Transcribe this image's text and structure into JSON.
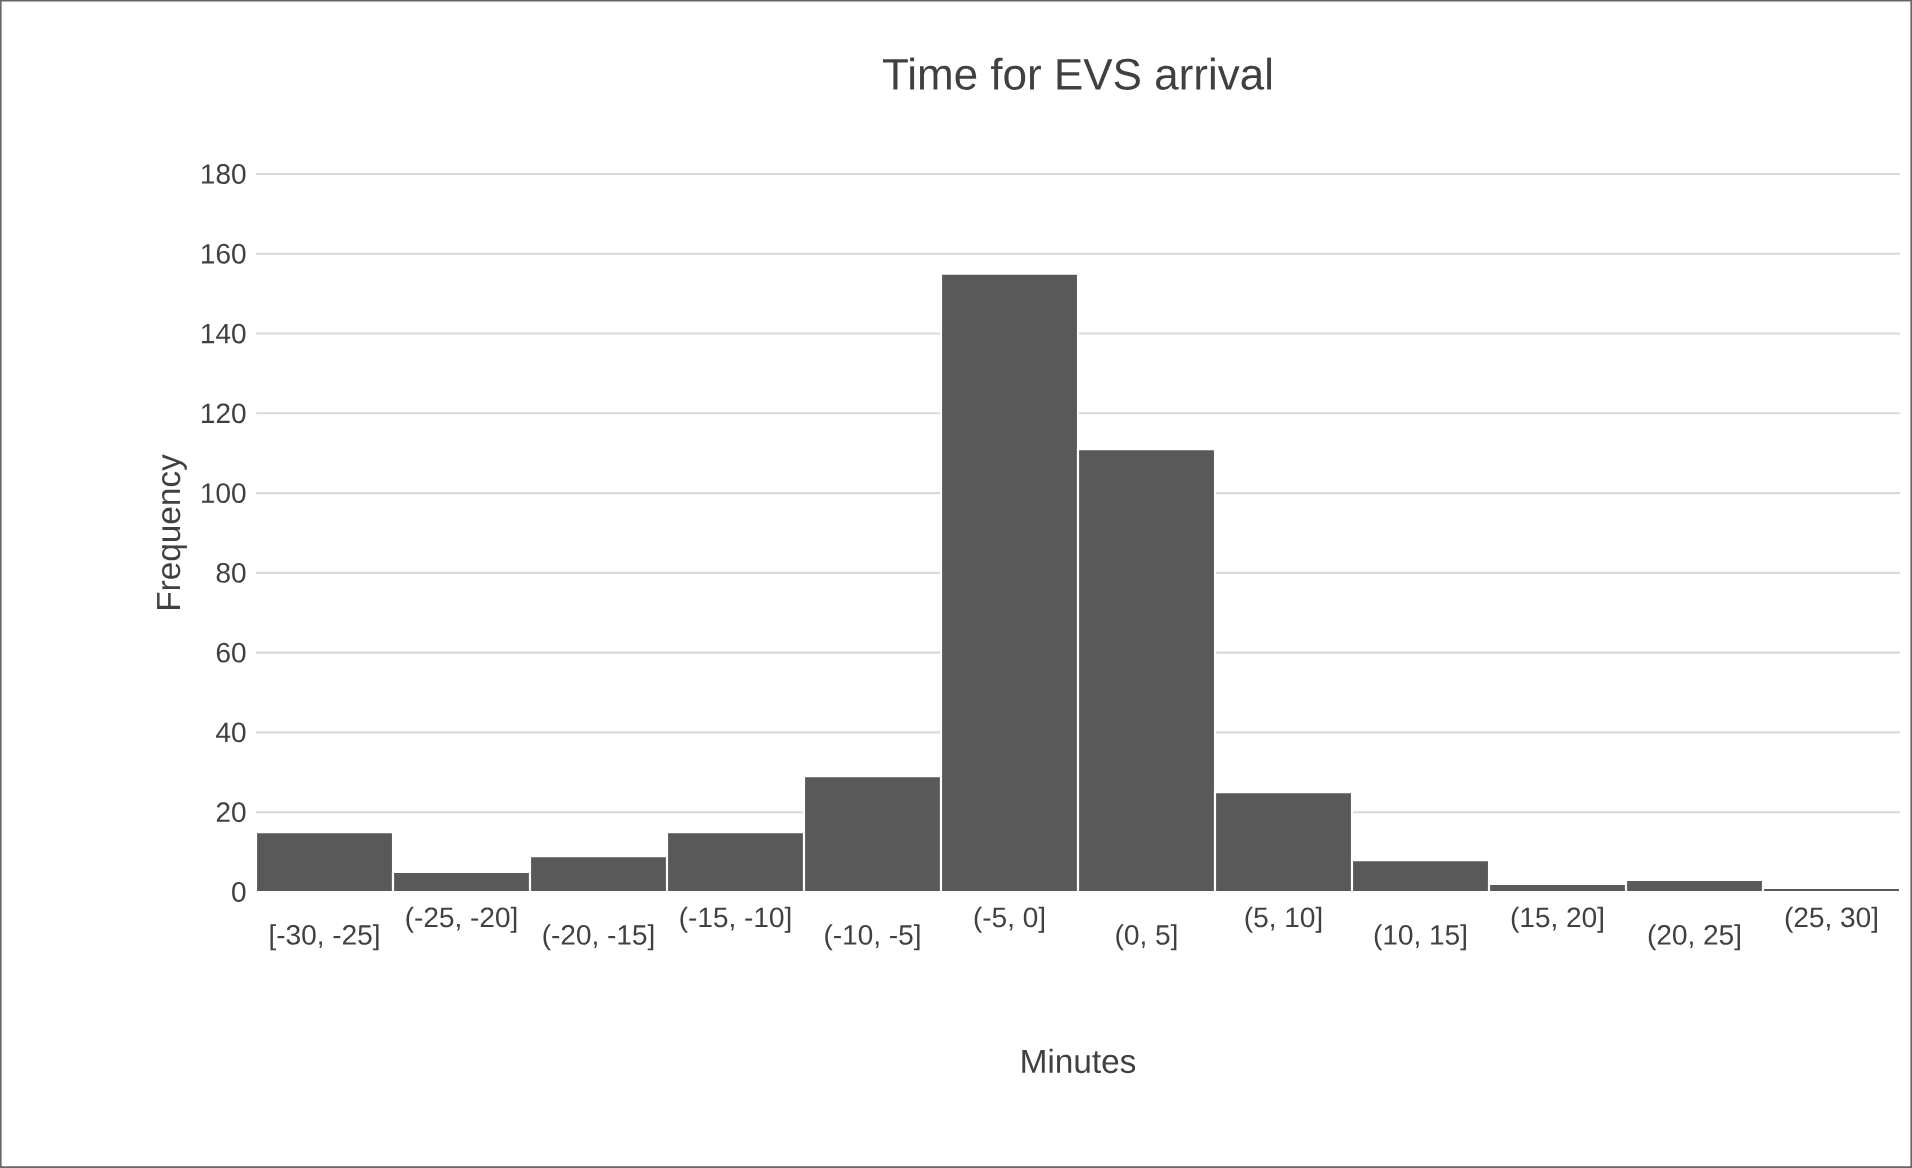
{
  "chart_data": {
    "type": "bar",
    "title": "Time for EVS arrival",
    "xlabel": "Minutes",
    "ylabel": "Frequency",
    "categories": [
      "[-30, -25]",
      "(-25, -20]",
      "(-20, -15]",
      "(-15, -10]",
      "(-10, -5]",
      "(-5, 0]",
      "(0, 5]",
      "(5, 10]",
      "(10, 15]",
      "(15, 20]",
      "(20, 25]",
      "(25, 30]"
    ],
    "values": [
      15,
      5,
      9,
      15,
      29,
      155,
      111,
      25,
      8,
      2,
      3,
      1
    ],
    "color": "#595959",
    "ylim": [
      0,
      180
    ],
    "yticks": [
      0,
      20,
      40,
      60,
      80,
      100,
      120,
      140,
      160,
      180
    ],
    "grid": "y"
  }
}
